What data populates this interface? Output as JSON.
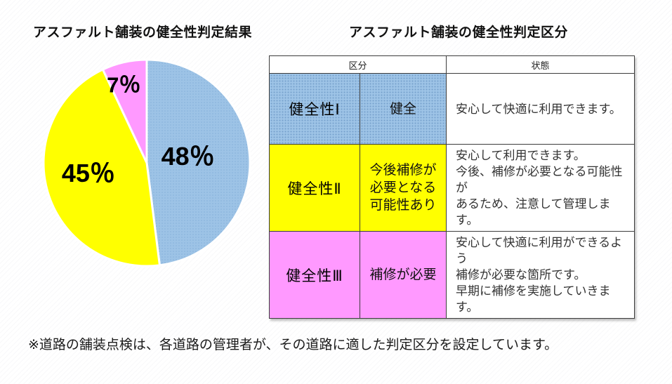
{
  "page": {
    "left_title": "アスファルト舗装の健全性判定結果",
    "right_title": "アスファルト舗装の健全性判定区分",
    "footnote": "※道路の舗装点検は、各道路の管理者が、その道路に適した判定区分を設定しています。"
  },
  "chart_data": {
    "type": "pie",
    "title": "アスファルト舗装の健全性判定結果",
    "unit": "％",
    "direction": "clockwise",
    "start_angle_deg": 0,
    "slices": [
      {
        "name": "健全性Ⅰ",
        "value": 48,
        "color": "#9DC3E6",
        "texture": "dots",
        "dot_color": "#85B1DA",
        "label_radius": 0.42,
        "label_font": 36,
        "label_offset": [
          -3,
          -6
        ]
      },
      {
        "name": "健全性Ⅱ",
        "value": 45,
        "color": "#FFFF00",
        "texture": "solid",
        "label_radius": 0.56,
        "label_font": 36,
        "label_offset": [
          -4,
          -9
        ]
      },
      {
        "name": "健全性Ⅲ",
        "value": 7,
        "color": "#FF99FF",
        "texture": "solid",
        "label_radius": 0.8,
        "label_font": 31,
        "label_offset": [
          -7,
          3
        ]
      }
    ]
  },
  "table": {
    "header": {
      "kubun": "区分",
      "joutai": "状態"
    },
    "rows": [
      {
        "grade": "健全性Ⅰ",
        "condition": "健全",
        "description": "安心して快適に利用できます。",
        "color": "#9DC3E6",
        "texture": "dots"
      },
      {
        "grade": "健全性Ⅱ",
        "condition": "今後補修が\n必要となる\n可能性あり",
        "description": "安心して利用できます。\n今後、補修が必要となる可能性が\nあるため、注意して管理します。",
        "color": "#FFFF00",
        "texture": "solid"
      },
      {
        "grade": "健全性Ⅲ",
        "condition": "補修が必要",
        "description": "安心して快適に利用ができるよう\n補修が必要な箇所です。\n早期に補修を実施していきます。",
        "color": "#FF99FF",
        "texture": "solid"
      }
    ]
  }
}
